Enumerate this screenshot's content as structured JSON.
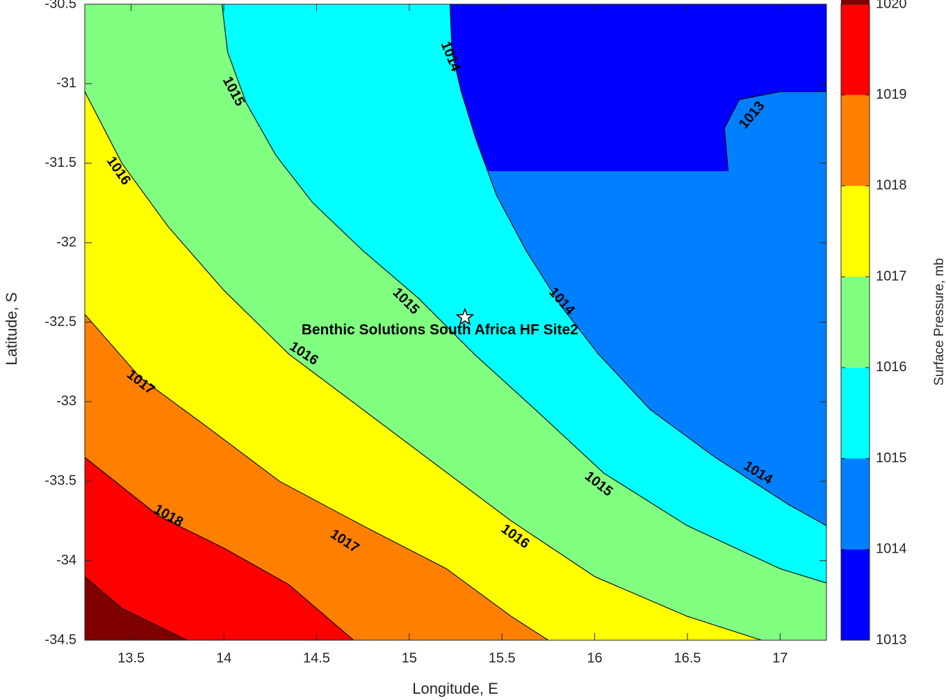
{
  "chart_data": {
    "type": "contour",
    "xlabel": "Longitude, E",
    "ylabel": "Latitude, S",
    "xlim": [
      13.25,
      17.25
    ],
    "ylim": [
      -34.5,
      -30.5
    ],
    "x_ticks": [
      "13.5",
      "14",
      "14.5",
      "15",
      "15.5",
      "16",
      "16.5",
      "17"
    ],
    "x_tick_values": [
      13.5,
      14,
      14.5,
      15,
      15.5,
      16,
      16.5,
      17
    ],
    "y_ticks": [
      "-30.5",
      "-31",
      "-31.5",
      "-32",
      "-32.5",
      "-33",
      "-33.5",
      "-34",
      "-34.5"
    ],
    "y_tick_values": [
      -30.5,
      -31,
      -31.5,
      -32,
      -32.5,
      -33,
      -33.5,
      -34,
      -34.5
    ],
    "levels": [
      1013,
      1014,
      1015,
      1016,
      1017,
      1018,
      1019,
      1020
    ],
    "fill_colors": [
      "#0000ff",
      "#0080ff",
      "#00ffff",
      "#80ff80",
      "#ffff00",
      "#ff8000",
      "#ff0000",
      "#800000"
    ],
    "contours": [
      {
        "level": 1013,
        "points": [
          [
            16.72,
            -31.55
          ],
          [
            16.7,
            -31.28
          ],
          [
            16.78,
            -31.1
          ],
          [
            17,
            -31.05
          ],
          [
            17.25,
            -31.05
          ]
        ]
      },
      {
        "level": 1014,
        "points": [
          [
            15.22,
            -30.5
          ],
          [
            15.23,
            -30.8
          ],
          [
            15.28,
            -31.05
          ],
          [
            15.36,
            -31.35
          ],
          [
            15.47,
            -31.7
          ],
          [
            15.63,
            -32.05
          ],
          [
            15.82,
            -32.4
          ],
          [
            16.02,
            -32.7
          ],
          [
            16.3,
            -33.05
          ],
          [
            16.65,
            -33.35
          ],
          [
            17.05,
            -33.65
          ],
          [
            17.25,
            -33.78
          ]
        ]
      },
      {
        "level": 1015,
        "points": [
          [
            13.99,
            -30.5
          ],
          [
            14.02,
            -30.8
          ],
          [
            14.12,
            -31.12
          ],
          [
            14.28,
            -31.45
          ],
          [
            14.48,
            -31.75
          ],
          [
            14.75,
            -32.05
          ],
          [
            15.05,
            -32.35
          ],
          [
            15.35,
            -32.7
          ],
          [
            15.68,
            -33.05
          ],
          [
            16.05,
            -33.45
          ],
          [
            16.5,
            -33.78
          ],
          [
            17.0,
            -34.05
          ],
          [
            17.25,
            -34.14
          ]
        ]
      },
      {
        "level": 1016,
        "points": [
          [
            13.25,
            -31.05
          ],
          [
            13.45,
            -31.5
          ],
          [
            13.7,
            -31.9
          ],
          [
            14.0,
            -32.3
          ],
          [
            14.35,
            -32.7
          ],
          [
            14.75,
            -33.05
          ],
          [
            15.15,
            -33.4
          ],
          [
            15.55,
            -33.75
          ],
          [
            16.0,
            -34.1
          ],
          [
            16.5,
            -34.35
          ],
          [
            16.9,
            -34.5
          ]
        ]
      },
      {
        "level": 1017,
        "points": [
          [
            13.25,
            -32.45
          ],
          [
            13.55,
            -32.85
          ],
          [
            13.9,
            -33.15
          ],
          [
            14.3,
            -33.5
          ],
          [
            14.75,
            -33.78
          ],
          [
            15.2,
            -34.05
          ],
          [
            15.55,
            -34.35
          ],
          [
            15.75,
            -34.5
          ]
        ]
      },
      {
        "level": 1018,
        "points": [
          [
            13.25,
            -33.35
          ],
          [
            13.65,
            -33.72
          ],
          [
            14.0,
            -33.92
          ],
          [
            14.35,
            -34.15
          ],
          [
            14.7,
            -34.5
          ]
        ]
      },
      {
        "level": 1019,
        "points": [
          [
            13.25,
            -34.1
          ],
          [
            13.45,
            -34.3
          ],
          [
            13.8,
            -34.5
          ]
        ]
      }
    ],
    "contour_labels": [
      {
        "text": "1014",
        "lon": 15.22,
        "lat": -30.83,
        "angle": 68
      },
      {
        "text": "1015",
        "lon": 14.05,
        "lat": -31.05,
        "angle": 62
      },
      {
        "text": "1013",
        "lon": 16.85,
        "lat": -31.2,
        "angle": -50
      },
      {
        "text": "1016",
        "lon": 13.43,
        "lat": -31.55,
        "angle": 55
      },
      {
        "text": "1015",
        "lon": 14.98,
        "lat": -32.37,
        "angle": 45
      },
      {
        "text": "1014",
        "lon": 15.82,
        "lat": -32.37,
        "angle": 48
      },
      {
        "text": "1017",
        "lon": 13.55,
        "lat": -32.88,
        "angle": 38
      },
      {
        "text": "1016",
        "lon": 14.43,
        "lat": -32.7,
        "angle": 33
      },
      {
        "text": "1015",
        "lon": 16.02,
        "lat": -33.52,
        "angle": 38
      },
      {
        "text": "1014",
        "lon": 16.88,
        "lat": -33.45,
        "angle": 32
      },
      {
        "text": "1018",
        "lon": 13.7,
        "lat": -33.72,
        "angle": 30
      },
      {
        "text": "1017",
        "lon": 14.65,
        "lat": -33.88,
        "angle": 33
      },
      {
        "text": "1016",
        "lon": 15.57,
        "lat": -33.85,
        "angle": 36
      }
    ],
    "site": {
      "name": "Benthic Solutions South Africa HF Site2",
      "lon": 15.3,
      "lat": -32.47
    },
    "colorbar": {
      "label": "Surface Pressure, mb",
      "range": [
        1013,
        1020
      ],
      "ticks": [
        "1013",
        "1014",
        "1015",
        "1016",
        "1017",
        "1018",
        "1019",
        "1020"
      ],
      "tick_values": [
        1013,
        1014,
        1015,
        1016,
        1017,
        1018,
        1019,
        1020
      ]
    }
  }
}
